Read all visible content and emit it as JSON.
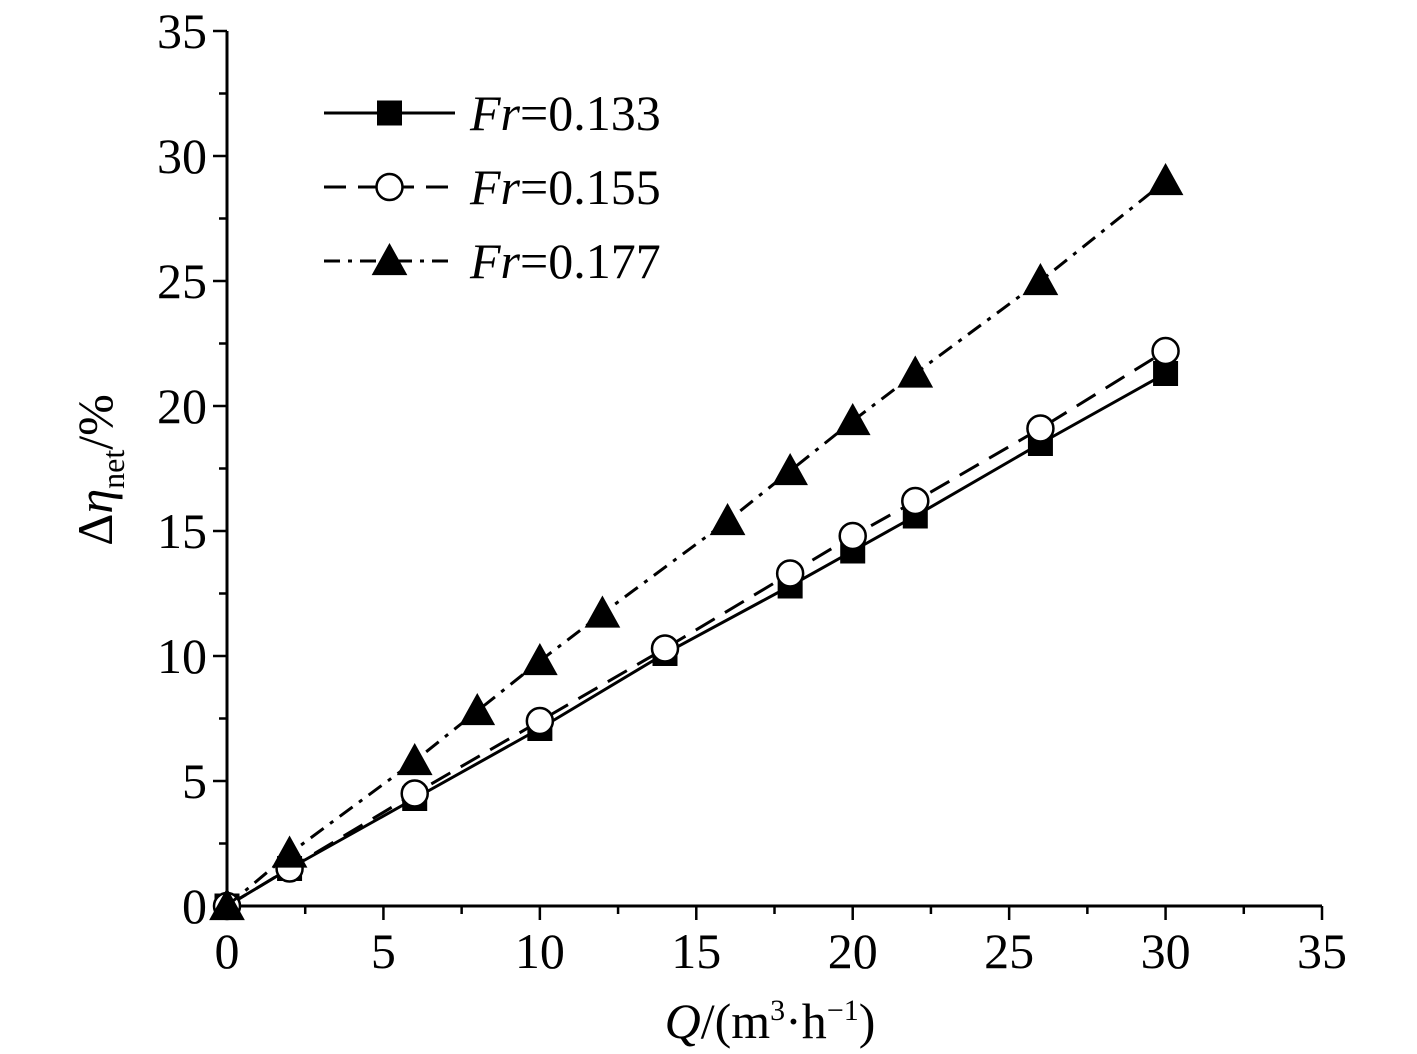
{
  "chart_data": {
    "type": "line",
    "x_axis": {
      "label_var": "Q",
      "label_unit_open": "/(m",
      "label_unit_sup1": "3",
      "label_unit_mid": "·h",
      "label_unit_sup2": "−1",
      "label_unit_close": ")",
      "range": [
        0,
        35
      ],
      "ticks": [
        "0",
        "5",
        "10",
        "15",
        "20",
        "25",
        "30",
        "35"
      ]
    },
    "y_axis": {
      "label_prefix": "Δ",
      "label_var": "η",
      "label_sub": "net",
      "label_unit": "/%",
      "range": [
        0,
        35
      ],
      "ticks": [
        "0",
        "5",
        "10",
        "15",
        "20",
        "25",
        "30",
        "35"
      ]
    },
    "legend_position": "top-left",
    "grid": false,
    "series": [
      {
        "name": "Fr=0.133",
        "name_var": "Fr",
        "name_value": "=0.133",
        "marker": "filled-square",
        "line_style": "solid",
        "x": [
          0,
          2,
          6,
          10,
          14,
          18,
          20,
          22,
          26,
          30
        ],
        "y": [
          0,
          1.5,
          4.3,
          7.1,
          10.1,
          12.8,
          14.2,
          15.6,
          18.5,
          21.3
        ]
      },
      {
        "name": "Fr=0.155",
        "name_var": "Fr",
        "name_value": "=0.155",
        "marker": "open-circle",
        "line_style": "dashed",
        "x": [
          0,
          2,
          6,
          10,
          14,
          18,
          20,
          22,
          26,
          30
        ],
        "y": [
          0,
          1.5,
          4.5,
          7.4,
          10.3,
          13.3,
          14.8,
          16.2,
          19.1,
          22.2
        ]
      },
      {
        "name": "Fr=0.177",
        "name_var": "Fr",
        "name_value": "=0.177",
        "marker": "filled-triangle",
        "line_style": "dash-dot",
        "x": [
          0,
          2,
          6,
          8,
          10,
          12,
          16,
          18,
          20,
          22,
          26,
          30
        ],
        "y": [
          0,
          2.1,
          5.8,
          7.8,
          9.8,
          11.7,
          15.4,
          17.4,
          19.4,
          21.3,
          25.0,
          29.0
        ]
      }
    ]
  }
}
